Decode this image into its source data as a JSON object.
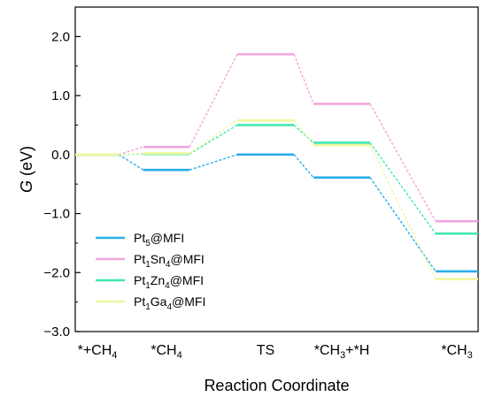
{
  "chart_data": {
    "type": "line",
    "style": "energy-level-diagram",
    "xlabel": "Reaction Coordinate",
    "ylabel": "G (eV)",
    "ylim": [
      -3.0,
      2.5
    ],
    "y_ticks": [
      2.0,
      1.0,
      0.0,
      -1.0,
      -2.0,
      -3.0
    ],
    "y_tick_labels": [
      "2.0",
      "1.0",
      "0.0",
      "−1.0",
      "−2.0",
      "−3.0"
    ],
    "x_ticks": [
      0,
      1,
      2,
      3,
      4
    ],
    "x_tick_labels": [
      {
        "base": "*+CH",
        "sub": "4"
      },
      {
        "base": "*CH",
        "sub": "4"
      },
      {
        "base": "TS",
        "sub": ""
      },
      {
        "base": "*CH",
        "sub": "3",
        "tail": "+*H"
      },
      {
        "base": "*CH",
        "sub": "3"
      }
    ],
    "grid": false,
    "legend_position": "lower-left",
    "series": [
      {
        "name": "Pt5@MFI",
        "legend": {
          "parts": [
            "Pt",
            "5",
            "@MFI"
          ]
        },
        "color": "#29aee8",
        "values": [
          0.0,
          -0.26,
          0.0,
          -0.39,
          -1.98
        ]
      },
      {
        "name": "Pt1Sn4@MFI",
        "legend": {
          "parts": [
            "Pt",
            "1",
            "Sn",
            "4",
            "@MFI"
          ]
        },
        "color": "#f2a6dd",
        "values": [
          0.0,
          0.13,
          1.7,
          0.86,
          -1.13
        ]
      },
      {
        "name": "Pt1Zn4@MFI",
        "legend": {
          "parts": [
            "Pt",
            "1",
            "Zn",
            "4",
            "@MFI"
          ]
        },
        "color": "#3fe8ad",
        "values": [
          0.0,
          0.01,
          0.5,
          0.2,
          -1.34
        ]
      },
      {
        "name": "Pt1Ga4@MFI",
        "legend": {
          "parts": [
            "Pt",
            "1",
            "Ga",
            "4",
            "@MFI"
          ]
        },
        "color": "#eef79a",
        "values": [
          0.0,
          0.02,
          0.58,
          0.16,
          -2.11
        ]
      }
    ]
  }
}
